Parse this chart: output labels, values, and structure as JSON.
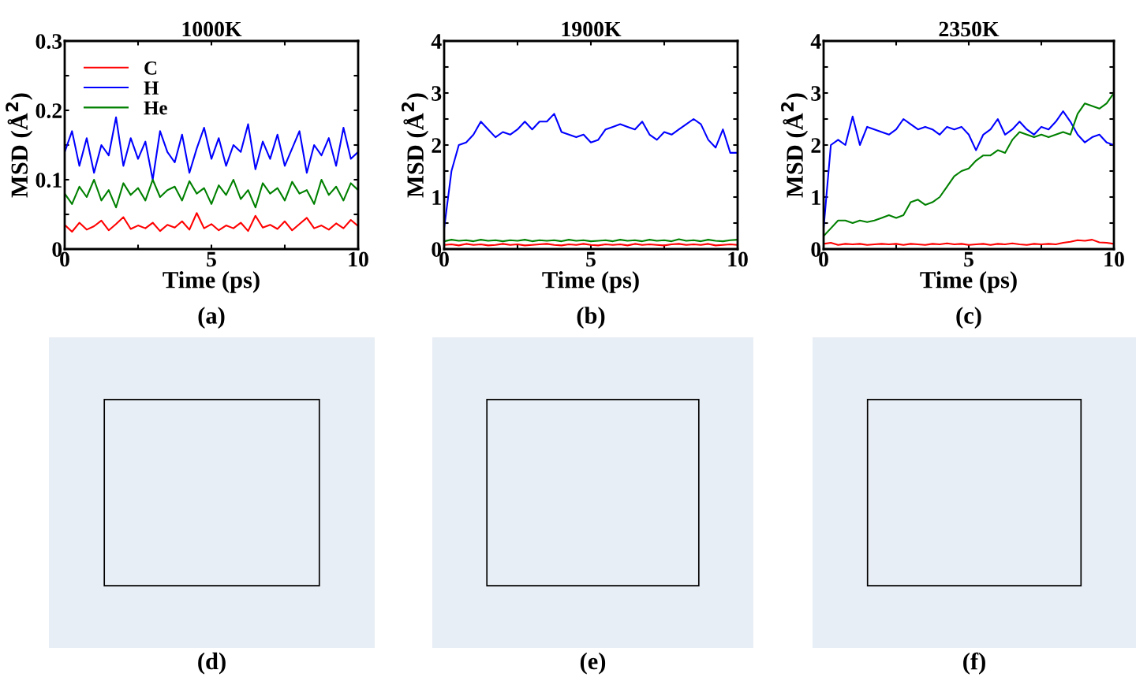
{
  "chart_data": [
    {
      "type": "line",
      "title": "1000K",
      "xlabel": "Time (ps)",
      "ylabel": "MSD (Å$^{2}$)",
      "annotations": [
        "(a)"
      ],
      "x": [
        0,
        0.25,
        0.5,
        0.75,
        1,
        1.25,
        1.5,
        1.75,
        2,
        2.25,
        2.5,
        2.75,
        3,
        3.25,
        3.5,
        3.75,
        4,
        4.25,
        4.5,
        4.75,
        5,
        5.25,
        5.5,
        5.75,
        6,
        6.25,
        6.5,
        6.75,
        7,
        7.25,
        7.5,
        7.75,
        8,
        8.25,
        8.5,
        8.75,
        9,
        9.25,
        9.5,
        9.75,
        10
      ],
      "xlim": [
        0,
        10
      ],
      "xticks": [
        0,
        5,
        10
      ],
      "ylim": [
        0,
        0.3
      ],
      "yticks": [
        0,
        0.1,
        0.2,
        0.3
      ],
      "legend": "top left",
      "grid": false,
      "series": [
        {
          "name": "C",
          "color": "#ff0000",
          "values": [
            0.035,
            0.025,
            0.038,
            0.028,
            0.033,
            0.041,
            0.027,
            0.036,
            0.046,
            0.029,
            0.034,
            0.03,
            0.038,
            0.026,
            0.035,
            0.031,
            0.04,
            0.028,
            0.052,
            0.03,
            0.036,
            0.027,
            0.034,
            0.03,
            0.038,
            0.026,
            0.048,
            0.031,
            0.035,
            0.029,
            0.04,
            0.027,
            0.036,
            0.045,
            0.03,
            0.034,
            0.028,
            0.037,
            0.03,
            0.042,
            0.033
          ]
        },
        {
          "name": "H",
          "color": "#0000ff",
          "values": [
            0.14,
            0.17,
            0.12,
            0.16,
            0.11,
            0.15,
            0.135,
            0.19,
            0.12,
            0.16,
            0.13,
            0.155,
            0.1,
            0.17,
            0.14,
            0.125,
            0.165,
            0.11,
            0.145,
            0.175,
            0.13,
            0.16,
            0.12,
            0.15,
            0.14,
            0.18,
            0.115,
            0.155,
            0.13,
            0.165,
            0.12,
            0.145,
            0.17,
            0.11,
            0.15,
            0.135,
            0.16,
            0.12,
            0.175,
            0.13,
            0.14
          ]
        },
        {
          "name": "He",
          "color": "#008000",
          "values": [
            0.08,
            0.065,
            0.09,
            0.075,
            0.1,
            0.07,
            0.085,
            0.06,
            0.095,
            0.078,
            0.088,
            0.07,
            0.1,
            0.075,
            0.085,
            0.09,
            0.07,
            0.098,
            0.08,
            0.088,
            0.065,
            0.092,
            0.078,
            0.1,
            0.072,
            0.085,
            0.06,
            0.095,
            0.08,
            0.088,
            0.07,
            0.097,
            0.08,
            0.085,
            0.065,
            0.1,
            0.078,
            0.09,
            0.07,
            0.095,
            0.085
          ]
        }
      ]
    },
    {
      "type": "line",
      "title": "1900K",
      "xlabel": "Time (ps)",
      "ylabel": "MSD (Å$^{2}$)",
      "annotations": [
        "(b)"
      ],
      "x": [
        0,
        0.25,
        0.5,
        0.75,
        1,
        1.25,
        1.5,
        1.75,
        2,
        2.25,
        2.5,
        2.75,
        3,
        3.25,
        3.5,
        3.75,
        4,
        4.25,
        4.5,
        4.75,
        5,
        5.25,
        5.5,
        5.75,
        6,
        6.25,
        6.5,
        6.75,
        7,
        7.25,
        7.5,
        7.75,
        8,
        8.25,
        8.5,
        8.75,
        9,
        9.25,
        9.5,
        9.75,
        10
      ],
      "xlim": [
        0,
        10
      ],
      "xticks": [
        0,
        5,
        10
      ],
      "ylim": [
        0,
        4
      ],
      "yticks": [
        0,
        1,
        2,
        3,
        4
      ],
      "grid": false,
      "series": [
        {
          "color": "#ff0000",
          "values": [
            0.08,
            0.09,
            0.07,
            0.1,
            0.08,
            0.09,
            0.07,
            0.08,
            0.1,
            0.08,
            0.09,
            0.07,
            0.08,
            0.09,
            0.1,
            0.08,
            0.07,
            0.09,
            0.08,
            0.1,
            0.08,
            0.07,
            0.09,
            0.08,
            0.09,
            0.07,
            0.1,
            0.08,
            0.09,
            0.08,
            0.07,
            0.09,
            0.1,
            0.08,
            0.09,
            0.08,
            0.1,
            0.07,
            0.08,
            0.09,
            0.08
          ]
        },
        {
          "color": "#0000ff",
          "values": [
            0.4,
            1.5,
            2.0,
            2.05,
            2.2,
            2.45,
            2.3,
            2.15,
            2.25,
            2.2,
            2.3,
            2.45,
            2.3,
            2.45,
            2.45,
            2.6,
            2.25,
            2.2,
            2.15,
            2.2,
            2.05,
            2.1,
            2.3,
            2.35,
            2.4,
            2.35,
            2.3,
            2.45,
            2.2,
            2.1,
            2.25,
            2.2,
            2.3,
            2.4,
            2.5,
            2.4,
            2.1,
            1.95,
            2.3,
            1.85,
            1.85
          ]
        },
        {
          "color": "#008000",
          "values": [
            0.15,
            0.18,
            0.16,
            0.17,
            0.15,
            0.18,
            0.16,
            0.17,
            0.15,
            0.17,
            0.16,
            0.18,
            0.15,
            0.17,
            0.16,
            0.17,
            0.15,
            0.18,
            0.16,
            0.17,
            0.15,
            0.16,
            0.17,
            0.15,
            0.18,
            0.16,
            0.17,
            0.15,
            0.18,
            0.16,
            0.17,
            0.15,
            0.19,
            0.16,
            0.17,
            0.15,
            0.18,
            0.16,
            0.15,
            0.17,
            0.18
          ]
        }
      ]
    },
    {
      "type": "line",
      "title": "2350K",
      "xlabel": "Time (ps)",
      "ylabel": "MSD (Å$^{2}$)",
      "annotations": [
        "(c)"
      ],
      "x": [
        0,
        0.25,
        0.5,
        0.75,
        1,
        1.25,
        1.5,
        1.75,
        2,
        2.25,
        2.5,
        2.75,
        3,
        3.25,
        3.5,
        3.75,
        4,
        4.25,
        4.5,
        4.75,
        5,
        5.25,
        5.5,
        5.75,
        6,
        6.25,
        6.5,
        6.75,
        7,
        7.25,
        7.5,
        7.75,
        8,
        8.25,
        8.5,
        8.75,
        9,
        9.25,
        9.5,
        9.75,
        10
      ],
      "xlim": [
        0,
        10
      ],
      "xticks": [
        0,
        5,
        10
      ],
      "ylim": [
        0,
        4
      ],
      "yticks": [
        0,
        1,
        2,
        3,
        4
      ],
      "grid": false,
      "series": [
        {
          "color": "#ff0000",
          "values": [
            0.1,
            0.12,
            0.08,
            0.1,
            0.09,
            0.1,
            0.08,
            0.09,
            0.1,
            0.09,
            0.1,
            0.08,
            0.1,
            0.09,
            0.08,
            0.1,
            0.09,
            0.11,
            0.09,
            0.1,
            0.08,
            0.09,
            0.1,
            0.08,
            0.1,
            0.09,
            0.11,
            0.09,
            0.08,
            0.1,
            0.09,
            0.1,
            0.09,
            0.12,
            0.14,
            0.17,
            0.16,
            0.18,
            0.13,
            0.12,
            0.1
          ]
        },
        {
          "color": "#0000ff",
          "values": [
            0.4,
            2.0,
            2.1,
            2.0,
            2.55,
            2.0,
            2.35,
            2.3,
            2.25,
            2.2,
            2.3,
            2.5,
            2.4,
            2.3,
            2.35,
            2.3,
            2.2,
            2.35,
            2.3,
            2.35,
            2.2,
            1.9,
            2.2,
            2.3,
            2.5,
            2.2,
            2.3,
            2.45,
            2.3,
            2.2,
            2.35,
            2.3,
            2.45,
            2.65,
            2.45,
            2.2,
            2.05,
            2.15,
            2.2,
            2.05,
            2.0
          ]
        },
        {
          "color": "#008000",
          "values": [
            0.25,
            0.4,
            0.55,
            0.55,
            0.5,
            0.55,
            0.52,
            0.55,
            0.6,
            0.65,
            0.6,
            0.65,
            0.9,
            0.95,
            0.85,
            0.9,
            1.0,
            1.2,
            1.4,
            1.5,
            1.55,
            1.7,
            1.8,
            1.8,
            1.9,
            1.85,
            2.1,
            2.25,
            2.2,
            2.15,
            2.2,
            2.15,
            2.2,
            2.25,
            2.2,
            2.6,
            2.8,
            2.75,
            2.7,
            2.8,
            3.0
          ]
        }
      ]
    },
    {
      "type": "other",
      "annotations": [
        "(d)"
      ]
    },
    {
      "type": "other",
      "annotations": [
        "(e)"
      ]
    },
    {
      "type": "other",
      "annotations": [
        "(f)"
      ]
    }
  ]
}
